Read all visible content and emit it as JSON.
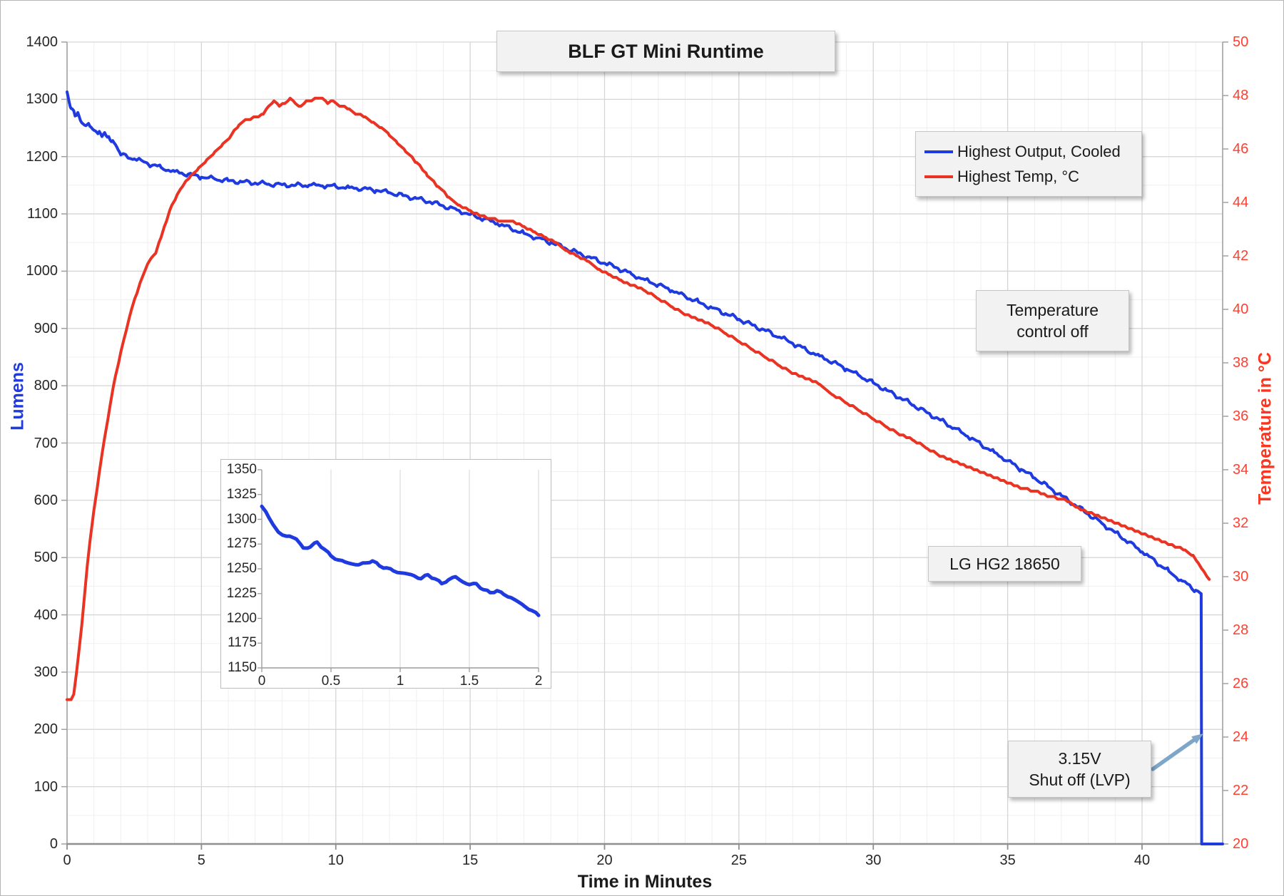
{
  "title": "BLF GT Mini Runtime",
  "colors": {
    "blue_series": "#1F3BE0",
    "red_series": "#E93323",
    "red_tick_label": "#FF4030",
    "red_axis_title": "#FA3620",
    "blue_axis_title": "#1F3BE0",
    "grid_major": "#d6d6d6",
    "grid_minor": "#efefef",
    "axis_line": "#a0a0a0",
    "axis_line_bottom": "#8f8f8f",
    "arrow": "#7EA6C8"
  },
  "axes": {
    "x": {
      "title": "Time in Minutes",
      "min": 0,
      "max": 43,
      "tick_labels": [
        "0",
        "5",
        "10",
        "15",
        "20",
        "25",
        "30",
        "35",
        "40"
      ],
      "tick_values": [
        0,
        5,
        10,
        15,
        20,
        25,
        30,
        35,
        40
      ],
      "minor_step": 1
    },
    "y_left": {
      "title": "Lumens",
      "min": 0,
      "max": 1400,
      "tick_labels": [
        "0",
        "100",
        "200",
        "300",
        "400",
        "500",
        "600",
        "700",
        "800",
        "900",
        "1000",
        "1100",
        "1200",
        "1300",
        "1400"
      ],
      "tick_values": [
        0,
        100,
        200,
        300,
        400,
        500,
        600,
        700,
        800,
        900,
        1000,
        1100,
        1200,
        1300,
        1400
      ],
      "minor_step": 50
    },
    "y_right": {
      "title": "Temperature in °C",
      "min": 20,
      "max": 50,
      "tick_labels": [
        "20",
        "22",
        "24",
        "26",
        "28",
        "30",
        "32",
        "34",
        "36",
        "38",
        "40",
        "42",
        "44",
        "46",
        "48",
        "50"
      ],
      "tick_values": [
        20,
        22,
        24,
        26,
        28,
        30,
        32,
        34,
        36,
        38,
        40,
        42,
        44,
        46,
        48,
        50
      ]
    }
  },
  "legend": {
    "items": [
      {
        "label": "Highest Output, Cooled",
        "color": "#1F3BE0"
      },
      {
        "label": "Highest Temp, °C",
        "color": "#E93323"
      }
    ]
  },
  "annotations": {
    "temp_control_line1": "Temperature",
    "temp_control_line2": "control off",
    "battery": "LG HG2 18650",
    "shutoff_line1": "3.15V",
    "shutoff_line2": "Shut off (LVP)"
  },
  "inset": {
    "x": {
      "min": 0,
      "max": 2,
      "tick_labels": [
        "0",
        "0.5",
        "1",
        "1.5",
        "2"
      ],
      "tick_values": [
        0,
        0.5,
        1,
        1.5,
        2
      ]
    },
    "y": {
      "min": 1150,
      "max": 1350,
      "tick_labels": [
        "1150",
        "1175",
        "1200",
        "1225",
        "1250",
        "1275",
        "1300",
        "1325",
        "1350"
      ],
      "tick_values": [
        1150,
        1175,
        1200,
        1225,
        1250,
        1275,
        1300,
        1325,
        1350
      ]
    }
  },
  "chart_data": {
    "type": "line",
    "title": "BLF GT Mini Runtime",
    "xlabel": "Time in Minutes",
    "ylabel_left": "Lumens",
    "ylabel_right": "Temperature in °C",
    "xlim": [
      0,
      43
    ],
    "ylim_left": [
      0,
      1400
    ],
    "ylim_right": [
      20,
      50
    ],
    "grid": "major+minor",
    "legend_position": "upper right",
    "noise_amplitude_lumens": 3,
    "series": [
      {
        "name": "Highest Output, Cooled",
        "axis": "left",
        "color": "#1F3BE0",
        "points": [
          [
            0,
            1313
          ],
          [
            0.05,
            1302
          ],
          [
            0.08,
            1295
          ],
          [
            0.12,
            1287
          ],
          [
            0.15,
            1284
          ],
          [
            0.2,
            1283
          ],
          [
            0.25,
            1280
          ],
          [
            0.3,
            1271
          ],
          [
            0.35,
            1272
          ],
          [
            0.4,
            1277
          ],
          [
            0.45,
            1270
          ],
          [
            0.5,
            1263
          ],
          [
            0.55,
            1259
          ],
          [
            0.6,
            1257
          ],
          [
            0.65,
            1255
          ],
          [
            0.7,
            1254
          ],
          [
            0.75,
            1256
          ],
          [
            0.8,
            1258
          ],
          [
            0.85,
            1253
          ],
          [
            0.9,
            1251
          ],
          [
            0.95,
            1248
          ],
          [
            1.0,
            1246
          ],
          [
            1.05,
            1245
          ],
          [
            1.1,
            1243
          ],
          [
            1.15,
            1240
          ],
          [
            1.2,
            1244
          ],
          [
            1.25,
            1240
          ],
          [
            1.3,
            1235
          ],
          [
            1.35,
            1239
          ],
          [
            1.4,
            1242
          ],
          [
            1.45,
            1237
          ],
          [
            1.5,
            1234
          ],
          [
            1.55,
            1235
          ],
          [
            1.6,
            1229
          ],
          [
            1.65,
            1226
          ],
          [
            1.7,
            1228
          ],
          [
            1.75,
            1224
          ],
          [
            1.8,
            1221
          ],
          [
            1.85,
            1217
          ],
          [
            1.9,
            1212
          ],
          [
            1.95,
            1208
          ],
          [
            2.0,
            1203
          ],
          [
            2.5,
            1196
          ],
          [
            3,
            1188
          ],
          [
            3.5,
            1181
          ],
          [
            4,
            1174
          ],
          [
            4.5,
            1169
          ],
          [
            5,
            1164
          ],
          [
            5.5,
            1161
          ],
          [
            6,
            1158
          ],
          [
            6.5,
            1156
          ],
          [
            7,
            1154
          ],
          [
            7.5,
            1152
          ],
          [
            8,
            1151
          ],
          [
            8.5,
            1150
          ],
          [
            9,
            1150
          ],
          [
            9.5,
            1149
          ],
          [
            10,
            1148
          ],
          [
            10.5,
            1146
          ],
          [
            11,
            1144
          ],
          [
            11.5,
            1141
          ],
          [
            12,
            1137
          ],
          [
            12.5,
            1132
          ],
          [
            13,
            1127
          ],
          [
            13.5,
            1121
          ],
          [
            14,
            1114
          ],
          [
            14.5,
            1107
          ],
          [
            15,
            1099
          ],
          [
            15.5,
            1091
          ],
          [
            16,
            1083
          ],
          [
            16.5,
            1075
          ],
          [
            17,
            1066
          ],
          [
            17.5,
            1058
          ],
          [
            18,
            1050
          ],
          [
            18.5,
            1041
          ],
          [
            19,
            1032
          ],
          [
            19.5,
            1023
          ],
          [
            20,
            1014
          ],
          [
            20.5,
            1005
          ],
          [
            21,
            995
          ],
          [
            21.5,
            985
          ],
          [
            22,
            976
          ],
          [
            22.5,
            966
          ],
          [
            23,
            956
          ],
          [
            23.5,
            946
          ],
          [
            24,
            936
          ],
          [
            24.5,
            926
          ],
          [
            25,
            916
          ],
          [
            25.5,
            906
          ],
          [
            26,
            896
          ],
          [
            26.5,
            885
          ],
          [
            27,
            874
          ],
          [
            27.5,
            863
          ],
          [
            28,
            852
          ],
          [
            28.5,
            841
          ],
          [
            29,
            829
          ],
          [
            29.5,
            817
          ],
          [
            30,
            805
          ],
          [
            30.5,
            792
          ],
          [
            31,
            779
          ],
          [
            31.5,
            766
          ],
          [
            32,
            753
          ],
          [
            32.5,
            740
          ],
          [
            33,
            726
          ],
          [
            33.5,
            712
          ],
          [
            34,
            698
          ],
          [
            34.5,
            684
          ],
          [
            35,
            669
          ],
          [
            35.5,
            654
          ],
          [
            36,
            639
          ],
          [
            36.5,
            624
          ],
          [
            37,
            608
          ],
          [
            37.5,
            592
          ],
          [
            38,
            576
          ],
          [
            38.5,
            560
          ],
          [
            39,
            544
          ],
          [
            39.5,
            527
          ],
          [
            40,
            510
          ],
          [
            40.5,
            493
          ],
          [
            41,
            476
          ],
          [
            41.5,
            459
          ],
          [
            42,
            443
          ],
          [
            42.2,
            437
          ],
          [
            42.22,
            0
          ],
          [
            43,
            0
          ]
        ]
      },
      {
        "name": "Highest Temp, °C",
        "axis": "right",
        "color": "#E93323",
        "points": [
          [
            0,
            25.4
          ],
          [
            0.15,
            25.4
          ],
          [
            0.25,
            25.6
          ],
          [
            0.35,
            26.4
          ],
          [
            0.45,
            27.3
          ],
          [
            0.55,
            28.2
          ],
          [
            0.65,
            29.3
          ],
          [
            0.75,
            30.4
          ],
          [
            0.85,
            31.3
          ],
          [
            1.0,
            32.5
          ],
          [
            1.2,
            33.9
          ],
          [
            1.4,
            35.2
          ],
          [
            1.6,
            36.4
          ],
          [
            1.8,
            37.5
          ],
          [
            2.0,
            38.4
          ],
          [
            2.2,
            39.2
          ],
          [
            2.4,
            40.0
          ],
          [
            2.6,
            40.6
          ],
          [
            2.8,
            41.2
          ],
          [
            3.0,
            41.7
          ],
          [
            3.2,
            42.0
          ],
          [
            3.3,
            42.1
          ],
          [
            3.5,
            42.7
          ],
          [
            3.7,
            43.3
          ],
          [
            3.9,
            43.9
          ],
          [
            4.1,
            44.3
          ],
          [
            4.3,
            44.6
          ],
          [
            4.6,
            45.0
          ],
          [
            4.9,
            45.3
          ],
          [
            5.2,
            45.6
          ],
          [
            5.5,
            45.9
          ],
          [
            5.8,
            46.2
          ],
          [
            6.1,
            46.5
          ],
          [
            6.4,
            46.9
          ],
          [
            6.7,
            47.1
          ],
          [
            7.0,
            47.2
          ],
          [
            7.3,
            47.3
          ],
          [
            7.5,
            47.6
          ],
          [
            7.7,
            47.8
          ],
          [
            7.9,
            47.6
          ],
          [
            8.1,
            47.7
          ],
          [
            8.3,
            47.9
          ],
          [
            8.5,
            47.7
          ],
          [
            8.7,
            47.6
          ],
          [
            8.9,
            47.8
          ],
          [
            9.1,
            47.8
          ],
          [
            9.3,
            47.9
          ],
          [
            9.5,
            47.9
          ],
          [
            9.7,
            47.7
          ],
          [
            9.9,
            47.8
          ],
          [
            10.2,
            47.6
          ],
          [
            10.5,
            47.5
          ],
          [
            10.8,
            47.3
          ],
          [
            11.1,
            47.2
          ],
          [
            11.4,
            47.0
          ],
          [
            11.7,
            46.8
          ],
          [
            12.0,
            46.5
          ],
          [
            12.3,
            46.2
          ],
          [
            12.6,
            45.9
          ],
          [
            13.0,
            45.5
          ],
          [
            13.4,
            45.0
          ],
          [
            13.8,
            44.6
          ],
          [
            14.2,
            44.2
          ],
          [
            14.6,
            43.9
          ],
          [
            15.0,
            43.7
          ],
          [
            15.4,
            43.5
          ],
          [
            15.8,
            43.4
          ],
          [
            16.2,
            43.3
          ],
          [
            16.6,
            43.3
          ],
          [
            17.0,
            43.1
          ],
          [
            17.4,
            42.9
          ],
          [
            17.8,
            42.7
          ],
          [
            18.2,
            42.5
          ],
          [
            18.6,
            42.2
          ],
          [
            19.0,
            42.0
          ],
          [
            19.4,
            41.8
          ],
          [
            19.8,
            41.5
          ],
          [
            20.2,
            41.3
          ],
          [
            20.6,
            41.1
          ],
          [
            21.0,
            40.9
          ],
          [
            21.5,
            40.7
          ],
          [
            22.0,
            40.4
          ],
          [
            22.5,
            40.1
          ],
          [
            23.0,
            39.8
          ],
          [
            23.5,
            39.6
          ],
          [
            24.0,
            39.4
          ],
          [
            24.5,
            39.1
          ],
          [
            25.0,
            38.8
          ],
          [
            25.5,
            38.5
          ],
          [
            26.0,
            38.2
          ],
          [
            26.5,
            37.9
          ],
          [
            27.0,
            37.6
          ],
          [
            27.5,
            37.4
          ],
          [
            28.0,
            37.2
          ],
          [
            28.5,
            36.8
          ],
          [
            29.0,
            36.5
          ],
          [
            29.5,
            36.2
          ],
          [
            30.0,
            35.9
          ],
          [
            30.5,
            35.6
          ],
          [
            31.0,
            35.3
          ],
          [
            31.5,
            35.1
          ],
          [
            32.0,
            34.8
          ],
          [
            32.5,
            34.5
          ],
          [
            33.0,
            34.3
          ],
          [
            33.5,
            34.1
          ],
          [
            34.0,
            33.9
          ],
          [
            34.5,
            33.7
          ],
          [
            35.0,
            33.5
          ],
          [
            35.5,
            33.3
          ],
          [
            36.0,
            33.2
          ],
          [
            36.5,
            33.0
          ],
          [
            37.0,
            32.9
          ],
          [
            37.3,
            32.8
          ],
          [
            37.6,
            32.6
          ],
          [
            38.0,
            32.4
          ],
          [
            38.5,
            32.2
          ],
          [
            39.0,
            32.0
          ],
          [
            39.5,
            31.8
          ],
          [
            40.0,
            31.6
          ],
          [
            40.5,
            31.4
          ],
          [
            41.0,
            31.2
          ],
          [
            41.3,
            31.1
          ],
          [
            41.6,
            31.0
          ],
          [
            41.9,
            30.8
          ],
          [
            42.1,
            30.5
          ],
          [
            42.3,
            30.2
          ],
          [
            42.5,
            29.9
          ]
        ]
      }
    ],
    "inset_chart": {
      "type": "line",
      "note": "zoom of Highest Output for first 2 minutes",
      "x_range": [
        0,
        2
      ],
      "y_range": [
        1150,
        1350
      ],
      "series_source": "Highest Output, Cooled"
    }
  }
}
